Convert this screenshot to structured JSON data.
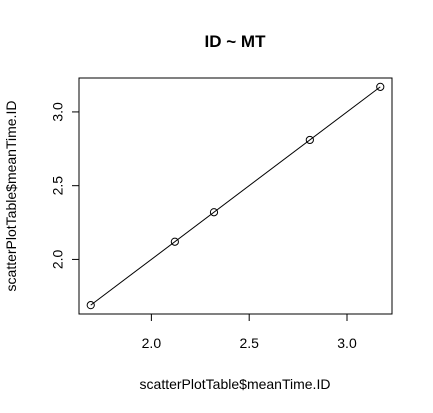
{
  "chart_data": {
    "type": "scatter",
    "title": "ID ~ MT",
    "xlabel": "scatterPlotTable$meanTime.ID",
    "ylabel": "scatterPlotTable$meanTime.ID",
    "xlim": [
      1.63,
      3.23
    ],
    "ylim": [
      1.63,
      3.23
    ],
    "xticks": [
      "2.0",
      "2.5",
      "3.0"
    ],
    "yticks": [
      "2.0",
      "2.5",
      "3.0"
    ],
    "grid": false,
    "x": [
      1.69,
      2.12,
      2.32,
      2.81,
      3.17
    ],
    "y": [
      1.69,
      2.12,
      2.32,
      2.81,
      3.17
    ],
    "fit_line": {
      "intercept": 0,
      "slope": 1
    }
  }
}
